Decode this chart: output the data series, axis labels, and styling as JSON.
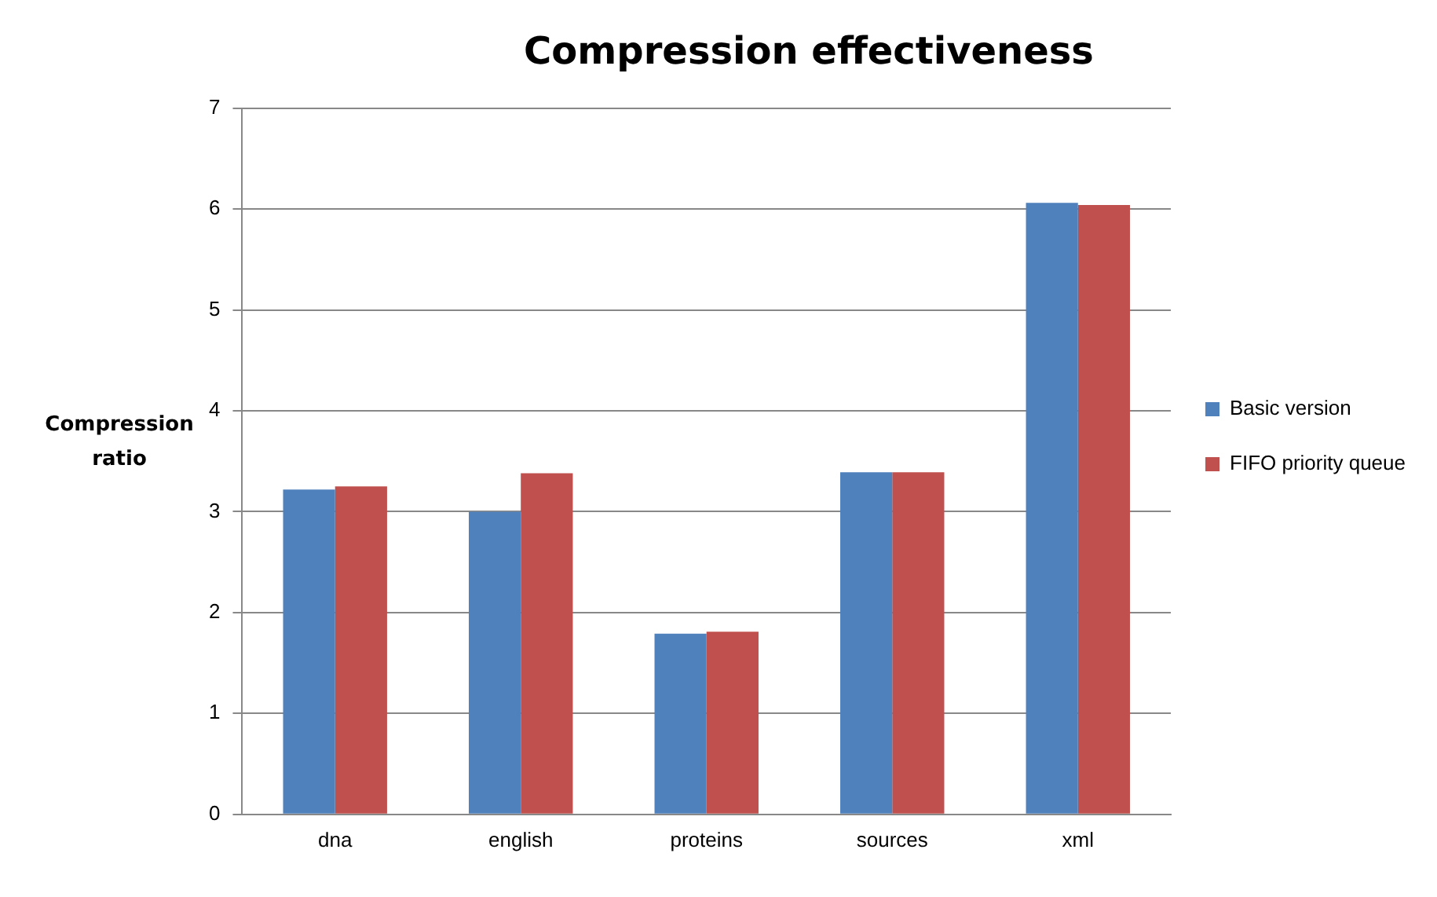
{
  "chart_data": {
    "type": "bar",
    "title": "Compression effectiveness",
    "ylabel": "Compression ratio",
    "categories": [
      "dna",
      "english",
      "proteins",
      "sources",
      "xml"
    ],
    "series": [
      {
        "name": "Basic version",
        "color": "#4f81bd",
        "values": [
          3.22,
          3.0,
          1.79,
          3.39,
          6.06
        ]
      },
      {
        "name": "FIFO priority queue",
        "color": "#c0504d",
        "values": [
          3.25,
          3.38,
          1.81,
          3.39,
          6.04
        ]
      }
    ],
    "ylim": [
      0,
      7
    ],
    "yticks": [
      0,
      1,
      2,
      3,
      4,
      5,
      6,
      7
    ],
    "grid": "y",
    "legend": "right"
  }
}
